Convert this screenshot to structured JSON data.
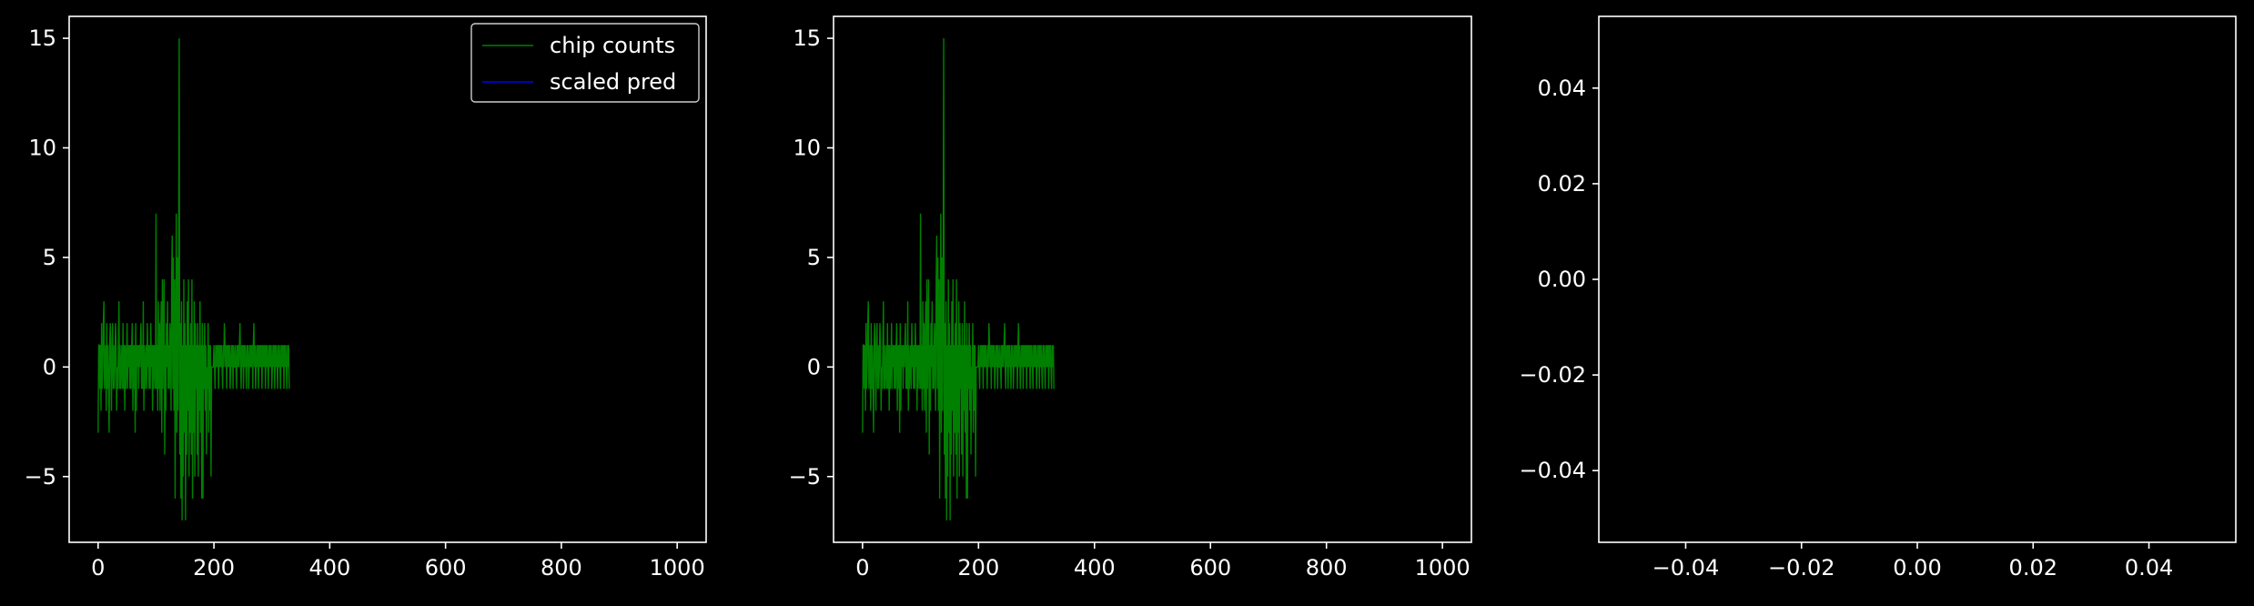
{
  "figure": {
    "background": "#000000",
    "foreground": "#ffffff"
  },
  "chart_data": [
    {
      "type": "line",
      "title": "",
      "xlabel": "",
      "ylabel": "",
      "xlim": [
        -50,
        1050
      ],
      "ylim": [
        -8,
        16
      ],
      "xticks": [
        0,
        200,
        400,
        600,
        800,
        1000
      ],
      "xtick_labels": [
        "0",
        "200",
        "400",
        "600",
        "800",
        "1000"
      ],
      "yticks": [
        -5,
        0,
        5,
        10,
        15
      ],
      "ytick_labels": [
        "−5",
        "0",
        "5",
        "10",
        "15"
      ],
      "grid": false,
      "legend": {
        "placement": "top-right",
        "entries": [
          {
            "label": "chip counts",
            "color": "#008000"
          },
          {
            "label": "scaled pred",
            "color": "#0000ff"
          }
        ]
      },
      "series": [
        {
          "name": "chip counts",
          "color": "#008000",
          "x_start": 0,
          "x_step": 1,
          "values": [
            -3,
            1,
            1,
            -1,
            1,
            -2,
            2,
            -1,
            0,
            2,
            3,
            -1,
            0,
            1,
            -2,
            2,
            -1,
            1,
            -1,
            -3,
            1,
            2,
            0,
            -2,
            1,
            2,
            -1,
            1,
            -1,
            0,
            2,
            1,
            -2,
            0,
            -1,
            1,
            3,
            -1,
            1,
            -1,
            0,
            1,
            -1,
            2,
            -1,
            1,
            -2,
            1,
            -1,
            0,
            2,
            -1,
            1,
            0,
            1,
            -1,
            1,
            -1,
            1,
            2,
            -2,
            1,
            -1,
            1,
            -3,
            2,
            -2,
            1,
            0,
            1,
            -1,
            1,
            0,
            1,
            2,
            -1,
            1,
            -1,
            3,
            -2,
            1,
            -1,
            0,
            1,
            -1,
            2,
            0,
            1,
            -1,
            1,
            -1,
            2,
            0,
            1,
            -2,
            1,
            -1,
            1,
            0,
            -1,
            7,
            -1,
            1,
            -2,
            3,
            -1,
            2,
            -2,
            1,
            3,
            -3,
            4,
            -1,
            2,
            4,
            -4,
            1,
            -2,
            2,
            0,
            3,
            -1,
            1,
            -1,
            2,
            1,
            -2,
            4,
            6,
            -1,
            5,
            -2,
            4,
            -6,
            1,
            7,
            -3,
            5,
            -2,
            4,
            15,
            -4,
            2,
            -6,
            3,
            -7,
            1,
            -5,
            4,
            -3,
            2,
            -7,
            1,
            -4,
            3,
            -2,
            4,
            -5,
            1,
            -3,
            2,
            -4,
            4,
            -6,
            1,
            -3,
            3,
            -5,
            2,
            -1,
            1,
            -4,
            2,
            -5,
            1,
            -2,
            3,
            -3,
            1,
            -6,
            2,
            -6,
            1,
            -1,
            2,
            -2,
            1,
            -4,
            0,
            -1,
            2,
            -3,
            1,
            -2,
            1,
            -5,
            0,
            0,
            0,
            0,
            1,
            0,
            -1,
            1,
            0,
            1,
            0,
            1,
            -1,
            1,
            0,
            1,
            0,
            1,
            0,
            -1,
            1,
            0,
            2,
            1,
            0,
            1,
            -1,
            1,
            0,
            1,
            0,
            1,
            -1,
            0,
            1,
            0,
            1,
            -1,
            1,
            0,
            0,
            1,
            0,
            -1,
            1,
            0,
            1,
            0,
            1,
            2,
            0,
            -1,
            1,
            0,
            1,
            -1,
            1,
            0,
            1,
            0,
            -1,
            1,
            0,
            1,
            -1,
            0,
            1,
            0,
            1,
            0,
            1,
            -1,
            1,
            2,
            0,
            1,
            -1,
            0,
            1,
            0,
            1,
            -1,
            1,
            0,
            1,
            0,
            1,
            -1,
            1,
            0,
            1,
            0,
            1,
            -1,
            1,
            0,
            1,
            0,
            -1,
            1,
            0,
            1,
            0,
            1,
            -1,
            0,
            1,
            0,
            1,
            -1,
            1,
            0,
            1,
            0,
            -1,
            1,
            0,
            1,
            0,
            -1,
            1,
            0,
            1,
            0,
            1,
            -1,
            1,
            0,
            1,
            0,
            -1,
            1,
            0,
            1,
            -1
          ]
        },
        {
          "name": "scaled pred",
          "color": "#0000ff",
          "values": []
        }
      ]
    },
    {
      "type": "line",
      "title": "",
      "xlabel": "",
      "ylabel": "",
      "xlim": [
        -50,
        1050
      ],
      "ylim": [
        -8,
        16
      ],
      "xticks": [
        0,
        200,
        400,
        600,
        800,
        1000
      ],
      "xtick_labels": [
        "0",
        "200",
        "400",
        "600",
        "800",
        "1000"
      ],
      "yticks": [
        -5,
        0,
        5,
        10,
        15
      ],
      "ytick_labels": [
        "−5",
        "0",
        "5",
        "10",
        "15"
      ],
      "grid": false,
      "series": [
        {
          "color": "#008000",
          "x_start": 0,
          "x_step": 1,
          "same_as_panel": 0
        }
      ]
    },
    {
      "type": "line",
      "title": "",
      "xlabel": "",
      "ylabel": "",
      "xlim": [
        -0.055,
        0.055
      ],
      "ylim": [
        -0.055,
        0.055
      ],
      "xticks": [
        -0.04,
        -0.02,
        0.0,
        0.02,
        0.04
      ],
      "xtick_labels": [
        "−0.04",
        "−0.02",
        "0.00",
        "0.02",
        "0.04"
      ],
      "yticks": [
        -0.04,
        -0.02,
        0.0,
        0.02,
        0.04
      ],
      "ytick_labels": [
        "−0.04",
        "−0.02",
        "0.00",
        "0.02",
        "0.04"
      ],
      "grid": false,
      "series": []
    }
  ]
}
